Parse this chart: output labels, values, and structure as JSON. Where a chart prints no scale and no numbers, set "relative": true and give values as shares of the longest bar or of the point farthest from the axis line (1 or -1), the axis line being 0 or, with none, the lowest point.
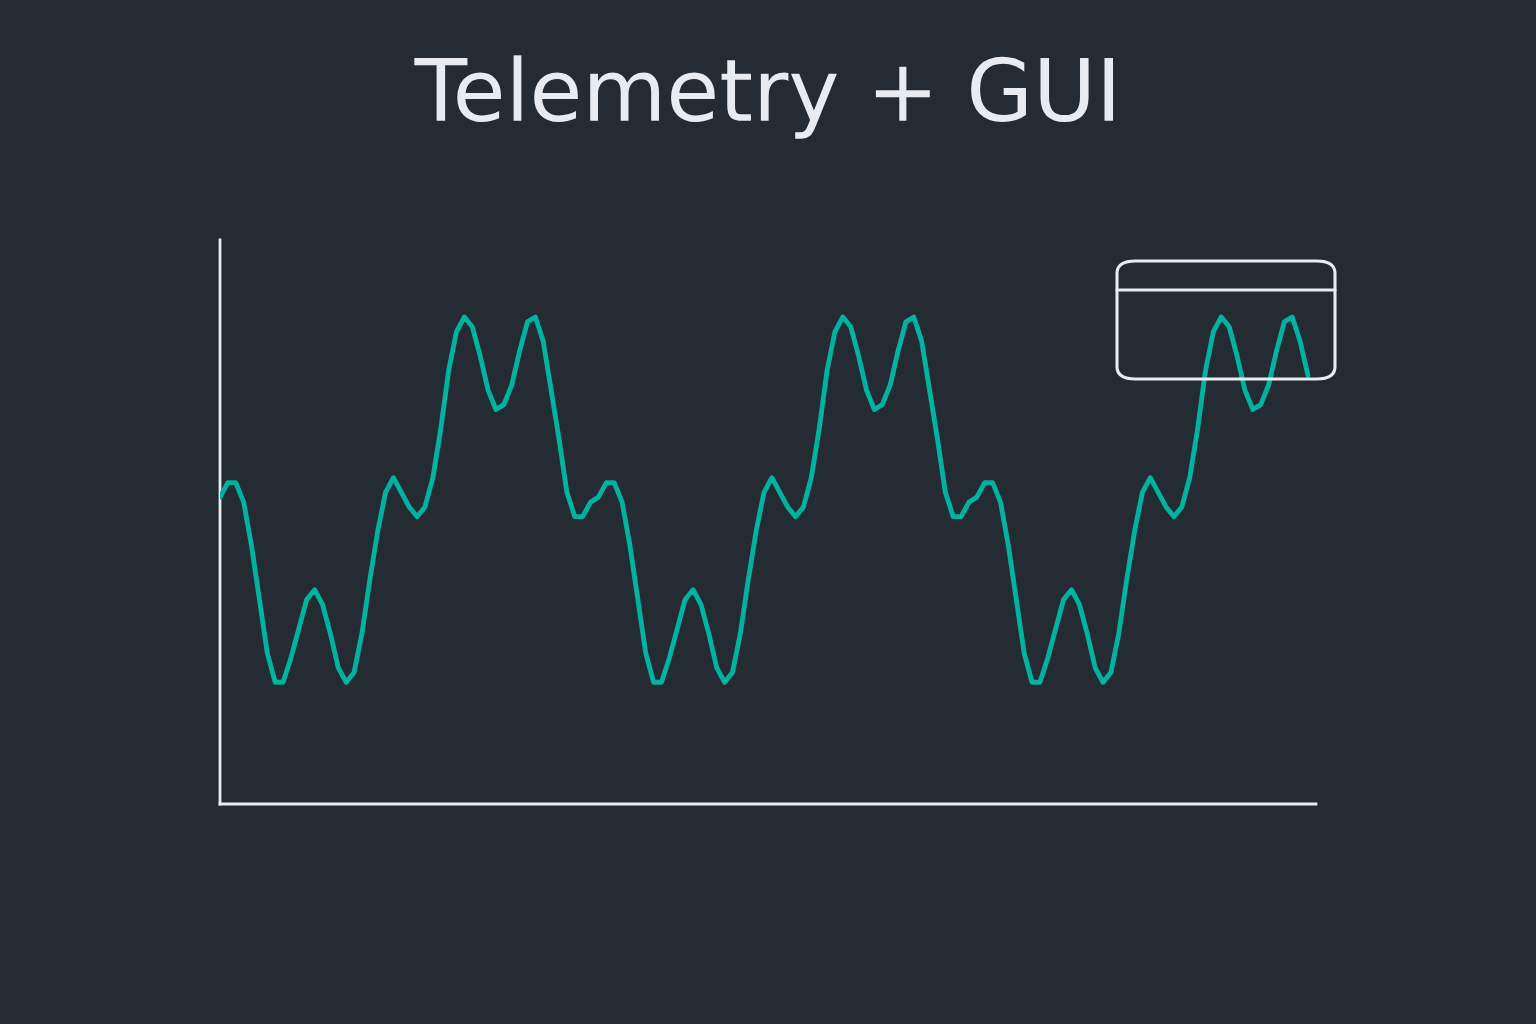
{
  "chart_data": {
    "type": "line",
    "title": "Telemetry + GUI",
    "relative": true,
    "categories": [
      null,
      null,
      null,
      null,
      null,
      null,
      null,
      null,
      null,
      null,
      null,
      null,
      null,
      null,
      null,
      null,
      null,
      null,
      null,
      null,
      null,
      null,
      null,
      null,
      null,
      null,
      null,
      null,
      null,
      null,
      null,
      null,
      null,
      null,
      null,
      null,
      null,
      null,
      null,
      null,
      null,
      null,
      null,
      null,
      null,
      null,
      null,
      null,
      null,
      null,
      null,
      null,
      null,
      null,
      null,
      null,
      null,
      null,
      null,
      null,
      null,
      null,
      null,
      null,
      null,
      null,
      null,
      null,
      null,
      null,
      null,
      null,
      null,
      null,
      null,
      null,
      null,
      null,
      null,
      null,
      null,
      null,
      null,
      null,
      null,
      null,
      null,
      null,
      null,
      null,
      null,
      null,
      null,
      null,
      null,
      null,
      null,
      null,
      null,
      null,
      null,
      null,
      null,
      null,
      null,
      null,
      null,
      null,
      null,
      null,
      null,
      null,
      null,
      null,
      null,
      null,
      null,
      null,
      null,
      null,
      null,
      null,
      null,
      null,
      null,
      null,
      null,
      null,
      null,
      null,
      null,
      null,
      null,
      null,
      null,
      null,
      null,
      null,
      null
    ],
    "series": [
      {
        "color": "#00b3a0",
        "values": [
          0.63,
          0.66,
          0.66,
          0.62,
          0.53,
          0.42,
          0.31,
          0.25,
          0.25,
          0.3,
          0.36,
          0.42,
          0.44,
          0.41,
          0.35,
          0.28,
          0.25,
          0.27,
          0.35,
          0.46,
          0.56,
          0.64,
          0.67,
          0.64,
          0.61,
          0.59,
          0.61,
          0.67,
          0.77,
          0.89,
          0.97,
          1.0,
          0.98,
          0.92,
          0.85,
          0.81,
          0.82,
          0.86,
          0.93,
          0.99,
          1.0,
          0.95,
          0.85,
          0.75,
          0.64,
          0.59,
          0.59,
          0.62,
          0.63,
          0.66,
          0.66,
          0.62,
          0.53,
          0.42,
          0.31,
          0.25,
          0.25,
          0.3,
          0.36,
          0.42,
          0.44,
          0.41,
          0.35,
          0.28,
          0.25,
          0.27,
          0.35,
          0.46,
          0.56,
          0.64,
          0.67,
          0.64,
          0.61,
          0.59,
          0.61,
          0.67,
          0.77,
          0.89,
          0.97,
          1.0,
          0.98,
          0.92,
          0.85,
          0.81,
          0.82,
          0.86,
          0.93,
          0.99,
          1.0,
          0.95,
          0.85,
          0.75,
          0.64,
          0.59,
          0.59,
          0.62,
          0.63,
          0.66,
          0.66,
          0.62,
          0.53,
          0.42,
          0.31,
          0.25,
          0.25,
          0.3,
          0.36,
          0.42,
          0.44,
          0.41,
          0.35,
          0.28,
          0.25,
          0.27,
          0.35,
          0.46,
          0.56,
          0.64,
          0.67,
          0.64,
          0.61,
          0.59,
          0.61,
          0.67,
          0.77,
          0.89,
          0.97,
          1.0,
          0.98,
          0.92,
          0.85,
          0.81,
          0.82,
          0.86,
          0.93,
          0.99,
          1.0,
          0.95,
          0.88
        ]
      }
    ]
  }
}
